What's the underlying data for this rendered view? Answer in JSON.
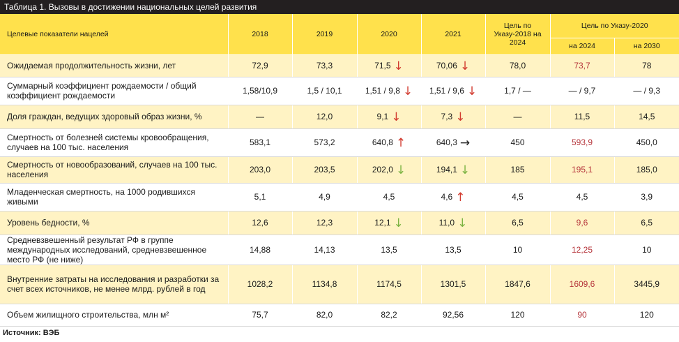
{
  "title": "Таблица 1. Вызовы в достижении национальных целей развития",
  "headers": {
    "indicator": "Целевые показатели нацелей",
    "y2018": "2018",
    "y2019": "2019",
    "y2020": "2020",
    "y2021": "2021",
    "goal2018": "Цель по Указу-2018 на 2024",
    "goal2020": "Цель по Указу-2020",
    "goal2020_2024": "на 2024",
    "goal2020_2030": "на 2030"
  },
  "rows": [
    {
      "label": "Ожидаемая продолжительность жизни, лет",
      "v2018": "72,9",
      "v2019": "73,3",
      "v2020": "71,5",
      "a2020": "down",
      "v2021": "70,06",
      "a2021": "down",
      "g2018": "78,0",
      "g2024": "73,7",
      "g2030": "78"
    },
    {
      "label": "Суммарный коэффициент рождаемости / общий коэффициент рождаемости",
      "v2018": "1,58/10,9",
      "v2019": "1,5 / 10,1",
      "v2020": "1,51 / 9,8",
      "a2020": "down",
      "v2021": "1,51 / 9,6",
      "a2021": "down",
      "g2018": "1,7 / —",
      "g2024": "— / 9,7",
      "g2030": "— / 9,3"
    },
    {
      "label": "Доля граждан, ведущих здоровый образ жизни, %",
      "v2018": "—",
      "v2019": "12,0",
      "v2020": "9,1",
      "a2020": "down",
      "v2021": "7,3",
      "a2021": "down",
      "g2018": "—",
      "g2024": "11,5",
      "g2030": "14,5"
    },
    {
      "label": "Смертность от болезней системы кровообращения, случаев на 100 тыс. населения",
      "v2018": "583,1",
      "v2019": "573,2",
      "v2020": "640,8",
      "a2020": "up",
      "v2021": "640,3",
      "a2021": "flat",
      "g2018": "450",
      "g2024": "593,9",
      "g2030": "450,0"
    },
    {
      "label": "Смертность от новообразований, случаев на 100 тыс. населения",
      "v2018": "203,0",
      "v2019": "203,5",
      "v2020": "202,0",
      "a2020": "good-down",
      "v2021": "194,1",
      "a2021": "good-down",
      "g2018": "185",
      "g2024": "195,1",
      "g2030": "185,0"
    },
    {
      "label": "Младенческая смертность, на 1000 родившихся живыми",
      "v2018": "5,1",
      "v2019": "4,9",
      "v2020": "4,5",
      "a2020": "",
      "v2021": "4,6",
      "a2021": "up",
      "g2018": "4,5",
      "g2024": "4,5",
      "g2030": "3,9"
    },
    {
      "label": "Уровень бедности, %",
      "v2018": "12,6",
      "v2019": "12,3",
      "v2020": "12,1",
      "a2020": "good-down",
      "v2021": "11,0",
      "a2021": "good-down",
      "g2018": "6,5",
      "g2024": "9,6",
      "g2030": "6,5"
    },
    {
      "label": "Средневзвешенный результат РФ в группе международных исследований, средневзвешенное место РФ (не ниже)",
      "v2018": "14,88",
      "v2019": "14,13",
      "v2020": "13,5",
      "a2020": "",
      "v2021": "13,5",
      "a2021": "",
      "g2018": "10",
      "g2024": "12,25",
      "g2030": "10"
    },
    {
      "label": "Внутренние затраты на исследования и разработки за счет всех источников, не менее млрд. рублей в год",
      "v2018": "1028,2",
      "v2019": "1134,8",
      "v2020": "1174,5",
      "a2020": "",
      "v2021": "1301,5",
      "a2021": "",
      "g2018": "1847,6",
      "g2024": "1609,6",
      "g2030": "3445,9"
    },
    {
      "label": "Объем жилищного строительства, млн м²",
      "v2018": "75,7",
      "v2019": "82,0",
      "v2020": "82,2",
      "a2020": "",
      "v2021": "92,56",
      "a2021": "",
      "g2018": "120",
      "g2024": "90",
      "g2030": "120"
    }
  ],
  "icons": {
    "down": "arrow-down-icon",
    "up": "arrow-up-icon",
    "flat": "arrow-right-icon"
  },
  "colors": {
    "header": "#ffe14c",
    "stripe": "#fff3c4",
    "highlight": "#b5343a",
    "bad_arrow": "#d23b2f",
    "good_arrow": "#7cb342"
  },
  "source": "Источник: ВЭБ"
}
